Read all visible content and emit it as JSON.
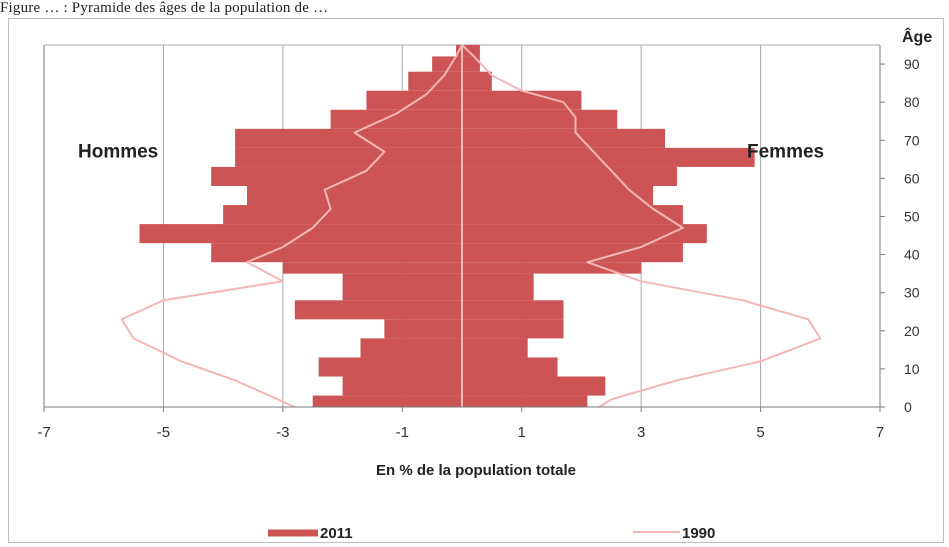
{
  "caption": "Figure … : Pyramide des âges de la population de …",
  "chart_data": {
    "type": "bar",
    "orientation": "horizontal",
    "xlabel": "En % de la population totale",
    "ylabel": "Âge",
    "xlim": [
      -7,
      7
    ],
    "ylim": [
      0,
      95
    ],
    "x_ticks": [
      -7,
      -5,
      -3,
      -1,
      1,
      3,
      5,
      7
    ],
    "x_tick_labels": [
      "-7",
      "-5",
      "-3",
      "-1",
      "1",
      "3",
      "5",
      "7"
    ],
    "y_ticks": [
      0,
      10,
      20,
      30,
      40,
      50,
      60,
      70,
      80,
      90
    ],
    "y_tick_labels": [
      "0",
      "10",
      "20",
      "30",
      "40",
      "50",
      "60",
      "70",
      "80",
      "90"
    ],
    "grid": true,
    "legend_position": "bottom",
    "annotations": [
      {
        "text": "Hommes",
        "side": "left"
      },
      {
        "text": "Femmes",
        "side": "right"
      }
    ],
    "age_groups": [
      {
        "from": 0,
        "to": 3
      },
      {
        "from": 3,
        "to": 8
      },
      {
        "from": 8,
        "to": 13
      },
      {
        "from": 13,
        "to": 18
      },
      {
        "from": 18,
        "to": 23
      },
      {
        "from": 23,
        "to": 28
      },
      {
        "from": 28,
        "to": 35
      },
      {
        "from": 35,
        "to": 38
      },
      {
        "from": 38,
        "to": 43
      },
      {
        "from": 43,
        "to": 48
      },
      {
        "from": 48,
        "to": 53
      },
      {
        "from": 53,
        "to": 58
      },
      {
        "from": 58,
        "to": 63
      },
      {
        "from": 63,
        "to": 68
      },
      {
        "from": 68,
        "to": 73
      },
      {
        "from": 73,
        "to": 78
      },
      {
        "from": 78,
        "to": 83
      },
      {
        "from": 83,
        "to": 88
      },
      {
        "from": 88,
        "to": 92
      },
      {
        "from": 92,
        "to": 95
      }
    ],
    "series": [
      {
        "name": "2011",
        "kind": "bar",
        "color": "#cd5454",
        "male": [
          -2.5,
          -2.0,
          -2.4,
          -1.7,
          -1.3,
          -2.8,
          -2.0,
          -3.0,
          -4.2,
          -5.4,
          -4.0,
          -3.6,
          -4.2,
          -3.8,
          -3.8,
          -2.2,
          -1.6,
          -0.9,
          -0.5,
          -0.1
        ],
        "female": [
          2.1,
          2.4,
          1.6,
          1.1,
          1.7,
          1.7,
          1.2,
          3.0,
          3.7,
          4.1,
          3.7,
          3.2,
          3.6,
          4.9,
          3.4,
          2.6,
          2.0,
          0.5,
          0.3,
          0.3
        ]
      },
      {
        "name": "1990",
        "kind": "line",
        "color": "#f4b6b6",
        "points": [
          [
            -2.8,
            0
          ],
          [
            -3.8,
            7
          ],
          [
            -4.7,
            12
          ],
          [
            -5.5,
            18
          ],
          [
            -5.7,
            23
          ],
          [
            -5.0,
            28
          ],
          [
            -3.0,
            33
          ],
          [
            -3.6,
            38
          ],
          [
            -3.0,
            42
          ],
          [
            -2.5,
            47
          ],
          [
            -2.2,
            52
          ],
          [
            -2.3,
            57
          ],
          [
            -1.6,
            62
          ],
          [
            -1.3,
            67
          ],
          [
            -1.8,
            72
          ],
          [
            -1.1,
            77
          ],
          [
            -0.6,
            82
          ],
          [
            -0.3,
            87
          ],
          [
            -0.1,
            92
          ],
          [
            0.0,
            95
          ],
          [
            0.2,
            92
          ],
          [
            0.5,
            87
          ],
          [
            1.0,
            83
          ],
          [
            1.7,
            80
          ],
          [
            1.9,
            76
          ],
          [
            1.9,
            72
          ],
          [
            2.2,
            67
          ],
          [
            2.5,
            62
          ],
          [
            2.8,
            57
          ],
          [
            3.2,
            52
          ],
          [
            3.7,
            47
          ],
          [
            3.0,
            42
          ],
          [
            2.1,
            38
          ],
          [
            3.0,
            33
          ],
          [
            4.7,
            28
          ],
          [
            5.8,
            23
          ],
          [
            6.0,
            18
          ],
          [
            5.0,
            12
          ],
          [
            3.6,
            7
          ],
          [
            2.5,
            2
          ],
          [
            2.3,
            0
          ]
        ]
      }
    ]
  }
}
